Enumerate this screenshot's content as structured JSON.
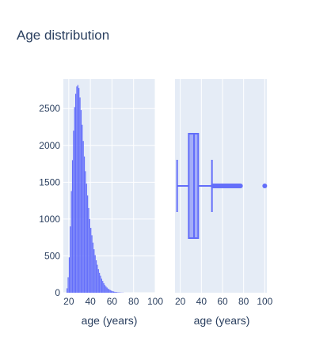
{
  "chart_data": [
    {
      "type": "bar",
      "subtype": "histogram",
      "title": "Age distribution",
      "xlabel": "age (years)",
      "ylabel": "",
      "xlim": [
        15,
        100
      ],
      "ylim": [
        0,
        2900
      ],
      "xticks": [
        "20",
        "40",
        "60",
        "80",
        "100"
      ],
      "yticks": [
        "0",
        "500",
        "1000",
        "1500",
        "2000",
        "2500"
      ],
      "grid": true,
      "color": "#636efa",
      "bin_width": 1,
      "x": [
        18,
        19,
        20,
        21,
        22,
        23,
        24,
        25,
        26,
        27,
        28,
        29,
        30,
        31,
        32,
        33,
        34,
        35,
        36,
        37,
        38,
        39,
        40,
        41,
        42,
        43,
        44,
        45,
        46,
        47,
        48,
        49,
        50,
        51,
        52,
        53,
        54,
        55,
        56,
        57,
        58,
        59,
        60,
        61,
        62,
        63,
        64,
        65,
        66,
        67,
        68,
        69,
        70
      ],
      "values": [
        60,
        210,
        480,
        900,
        1380,
        1800,
        2200,
        2520,
        2700,
        2800,
        2820,
        2780,
        2650,
        2480,
        2280,
        2060,
        1850,
        1650,
        1480,
        1320,
        1150,
        1000,
        880,
        780,
        680,
        590,
        510,
        440,
        380,
        320,
        270,
        230,
        190,
        160,
        130,
        105,
        85,
        70,
        55,
        45,
        36,
        28,
        22,
        17,
        13,
        10,
        8,
        6,
        5,
        4,
        3,
        2,
        2
      ]
    },
    {
      "type": "box",
      "xlabel": "age (years)",
      "xlim": [
        15,
        102
      ],
      "xticks": [
        "20",
        "40",
        "60",
        "80",
        "100"
      ],
      "grid": true,
      "color": "#636efa",
      "min": 17,
      "q1": 28,
      "median": 33,
      "q3": 37,
      "upper_fence": 50,
      "outliers": [
        51,
        52,
        53,
        54,
        55,
        56,
        57,
        58,
        59,
        60,
        61,
        62,
        63,
        64,
        65,
        66,
        67,
        68,
        69,
        70,
        71,
        72,
        73,
        74,
        75,
        76,
        77,
        100
      ]
    }
  ]
}
